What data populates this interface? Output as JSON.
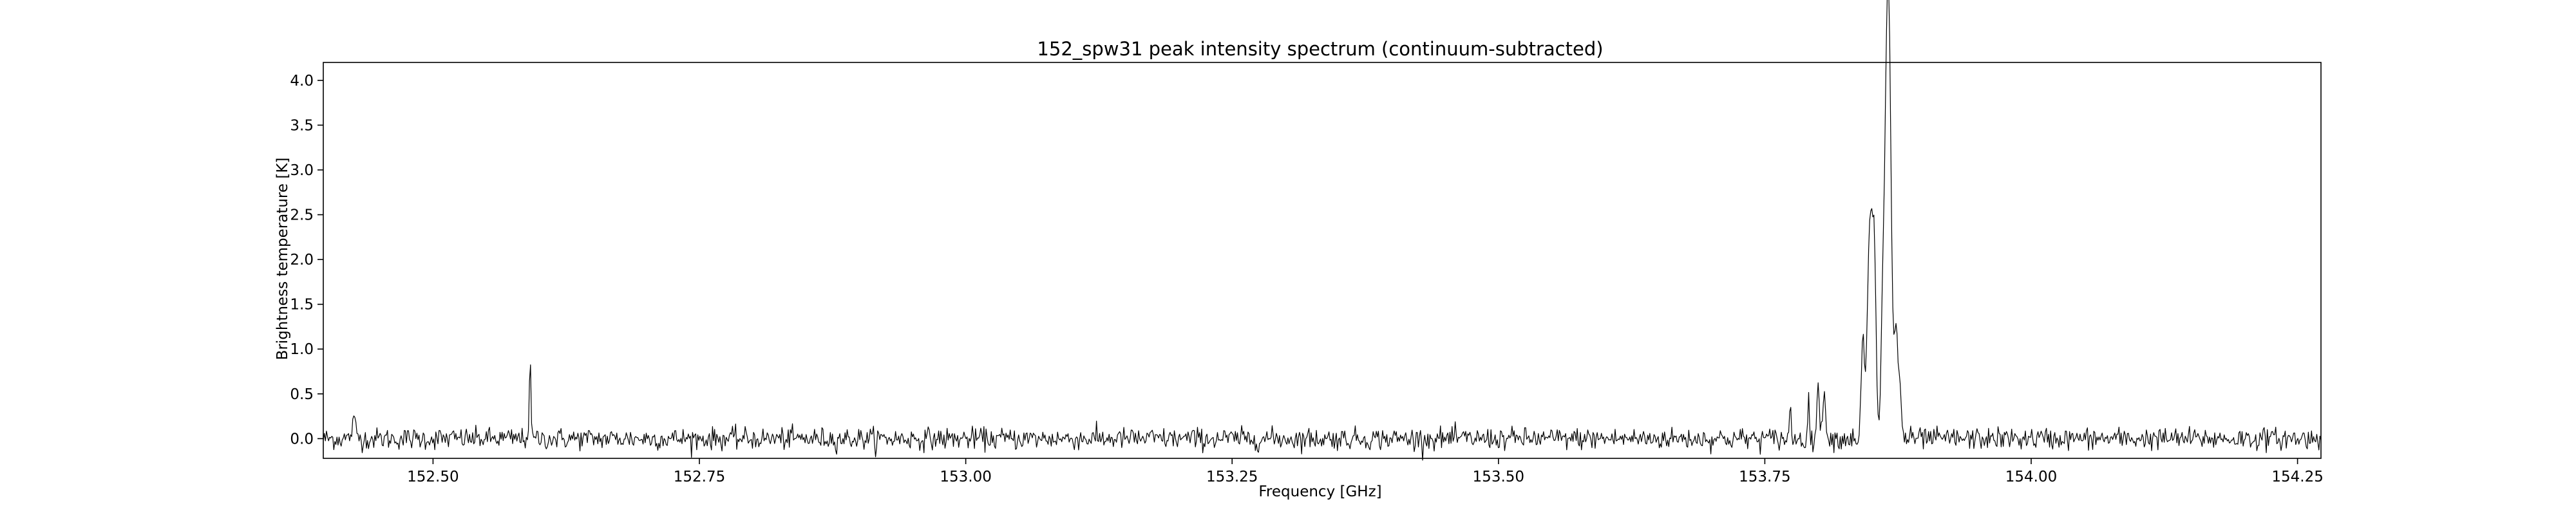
{
  "chart_data": {
    "type": "line",
    "title": "152_spw31 peak intensity spectrum (continuum-subtracted)",
    "xlabel": "Frequency [GHz]",
    "ylabel": "Brightness temperature [K]",
    "xlim": [
      152.397,
      154.272
    ],
    "ylim": [
      -0.22,
      4.2
    ],
    "xticks": [
      152.5,
      152.75,
      153.0,
      153.25,
      153.5,
      153.75,
      154.0,
      154.25
    ],
    "xtick_labels": [
      "152.50",
      "152.75",
      "153.00",
      "153.25",
      "153.50",
      "153.75",
      "154.00",
      "154.25"
    ],
    "yticks": [
      0.0,
      0.5,
      1.0,
      1.5,
      2.0,
      2.5,
      3.0,
      3.5,
      4.0
    ],
    "ytick_labels": [
      "0.0",
      "0.5",
      "1.0",
      "1.5",
      "2.0",
      "2.5",
      "3.0",
      "3.5",
      "4.0"
    ],
    "grid": false,
    "line_color": "#000000",
    "series": [
      {
        "noise_sigma": 0.06,
        "channel_count": 1900,
        "features": [
          {
            "freq": 152.591,
            "peak": 0.85,
            "width": 0.0008
          },
          {
            "freq": 152.426,
            "peak": 0.18,
            "width": 0.002
          },
          {
            "freq": 153.774,
            "peak": 0.33,
            "width": 0.0008
          },
          {
            "freq": 153.791,
            "peak": 0.38,
            "width": 0.0008
          },
          {
            "freq": 153.8,
            "peak": 0.6,
            "width": 0.0012
          },
          {
            "freq": 153.806,
            "peak": 0.6,
            "width": 0.0012
          },
          {
            "freq": 153.842,
            "peak": 1.05,
            "width": 0.0015
          },
          {
            "freq": 153.849,
            "peak": 2.5,
            "width": 0.0025
          },
          {
            "freq": 153.853,
            "peak": 1.6,
            "width": 0.0015
          },
          {
            "freq": 153.86,
            "peak": 0.55,
            "width": 0.0012
          },
          {
            "freq": 153.864,
            "peak": 3.45,
            "width": 0.0025
          },
          {
            "freq": 153.867,
            "peak": 2.95,
            "width": 0.002
          },
          {
            "freq": 153.873,
            "peak": 1.2,
            "width": 0.002
          },
          {
            "freq": 153.877,
            "peak": 0.42,
            "width": 0.0015
          }
        ]
      }
    ]
  }
}
